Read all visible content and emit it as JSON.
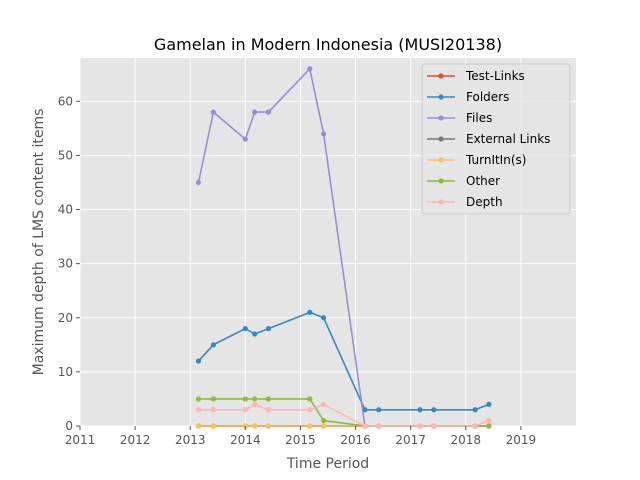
{
  "chart_data": {
    "type": "line",
    "title": "Gamelan in Modern Indonesia (MUSI20138)",
    "xlabel": "Time Period",
    "ylabel": "Maximum depth of LMS content items",
    "xlim": [
      2011,
      2020
    ],
    "ylim": [
      0,
      68
    ],
    "x_ticks": [
      "2011",
      "2012",
      "2013",
      "2014",
      "2015",
      "2016",
      "2017",
      "2018",
      "2019"
    ],
    "y_ticks": [
      "0",
      "10",
      "20",
      "30",
      "40",
      "50",
      "60"
    ],
    "grid": true,
    "legend_position": "top-right",
    "x": [
      2013.15,
      2013.42,
      2014.0,
      2014.17,
      2014.42,
      2015.17,
      2015.42,
      2016.17,
      2016.42,
      2017.17,
      2017.42,
      2018.17,
      2018.42
    ],
    "series": [
      {
        "name": "Test-Links",
        "color": "#e24a33",
        "values": [
          0,
          0,
          0,
          0,
          0,
          0,
          0,
          0,
          0,
          0,
          0,
          0,
          0
        ]
      },
      {
        "name": "Folders",
        "color": "#348abd",
        "values": [
          12,
          15,
          18,
          17,
          18,
          21,
          20,
          3,
          3,
          3,
          3,
          3,
          4
        ]
      },
      {
        "name": "Files",
        "color": "#988ed5",
        "values": [
          45,
          58,
          53,
          58,
          58,
          66,
          54,
          0,
          0,
          0,
          0,
          0,
          0
        ]
      },
      {
        "name": "External Links",
        "color": "#777777",
        "values": [
          0,
          0,
          0,
          0,
          0,
          0,
          0,
          0,
          0,
          0,
          0,
          0,
          0
        ]
      },
      {
        "name": "TurnItIn(s)",
        "color": "#fbc15e",
        "values": [
          0,
          0,
          0,
          0,
          0,
          0,
          0,
          0,
          0,
          0,
          0,
          0,
          0
        ]
      },
      {
        "name": "Other",
        "color": "#8eba42",
        "values": [
          5,
          5,
          5,
          5,
          5,
          5,
          1,
          0,
          0,
          0,
          0,
          0,
          0
        ]
      },
      {
        "name": "Depth",
        "color": "#ffb5b8",
        "values": [
          3,
          3,
          3,
          4,
          3,
          3,
          4,
          0,
          0,
          0,
          0,
          0,
          1
        ]
      }
    ]
  }
}
